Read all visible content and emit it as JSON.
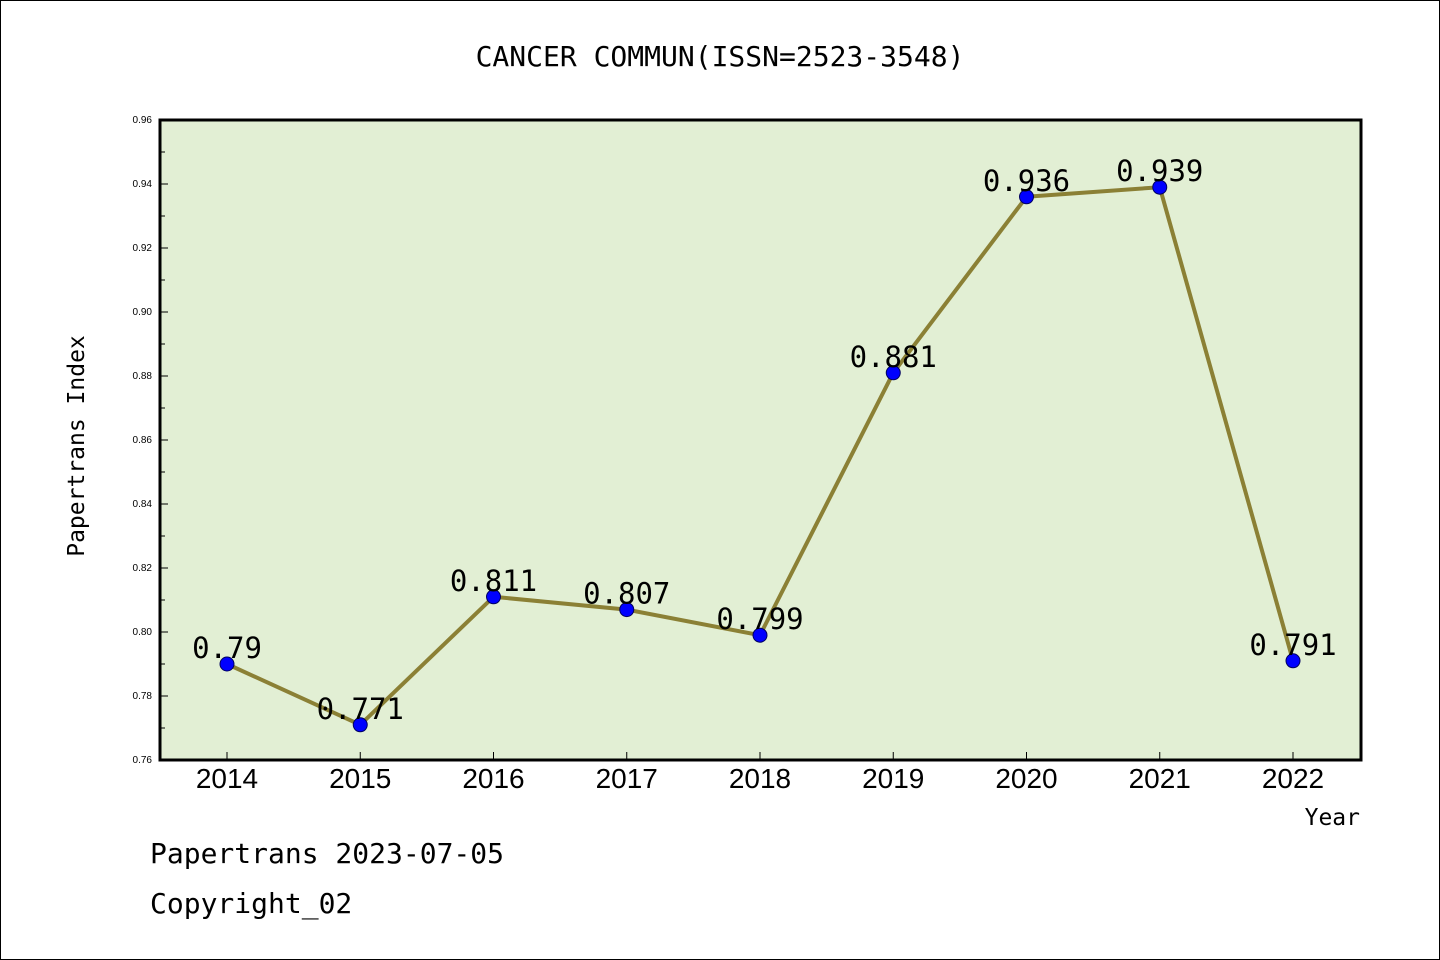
{
  "chart_data": {
    "type": "line",
    "title": "CANCER COMMUN(ISSN=2523-3548)",
    "xlabel": "Year",
    "ylabel": "Papertrans Index",
    "categories": [
      "2014",
      "2015",
      "2016",
      "2017",
      "2018",
      "2019",
      "2020",
      "2021",
      "2022"
    ],
    "series": [
      {
        "values": [
          0.79,
          0.771,
          0.811,
          0.807,
          0.799,
          0.881,
          0.936,
          0.939,
          0.791
        ],
        "labels": [
          "0.79",
          "0.771",
          "0.811",
          "0.807",
          "0.799",
          "0.881",
          "0.936",
          "0.939",
          "0.791"
        ]
      }
    ],
    "ylim": [
      0.76,
      0.96
    ],
    "yticks": [
      "0.76",
      "0.78",
      "0.80",
      "0.82",
      "0.84",
      "0.86",
      "0.88",
      "0.90",
      "0.92",
      "0.94",
      "0.96"
    ],
    "grid": false,
    "colors": {
      "plot_background": "#e2efd4",
      "line": "#8b8035",
      "marker": "#0000ff"
    }
  },
  "footer": {
    "line1": "Papertrans 2023-07-05",
    "line2": "Copyright_02"
  }
}
